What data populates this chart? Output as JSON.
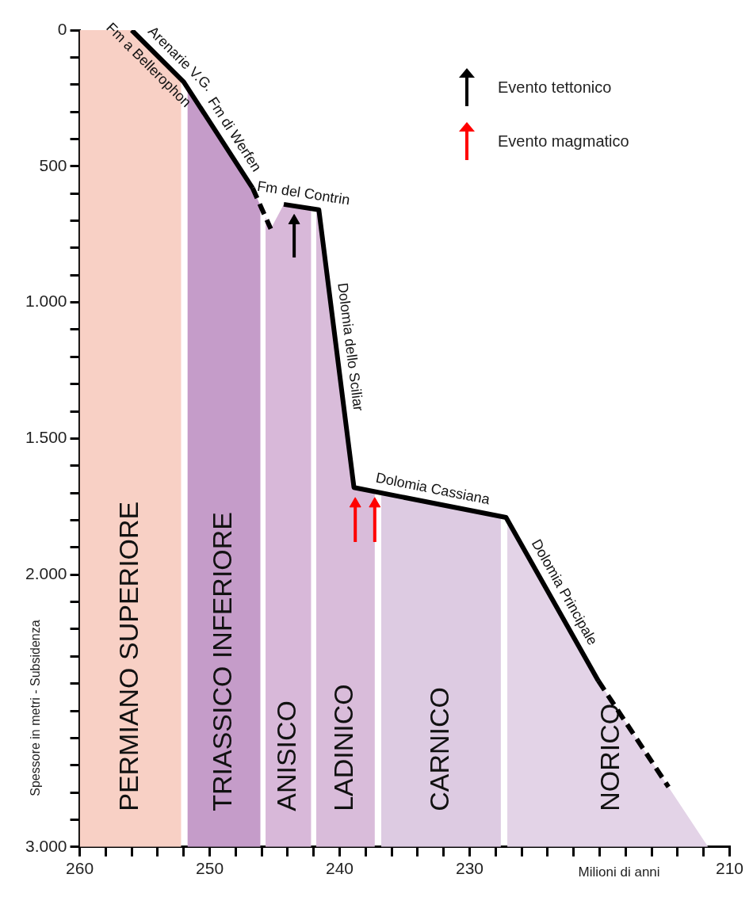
{
  "chart_data": {
    "type": "line",
    "xlabel": "Milioni di anni",
    "ylabel": "Spessore in metri - Subsidenza",
    "xlim": [
      260,
      210
    ],
    "xticks": [
      260,
      {
        "value": 258,
        "label": null
      },
      {
        "value": 256,
        "label": null
      },
      {
        "value": 254,
        "label": null
      },
      {
        "value": 252,
        "label": null
      },
      250,
      {
        "value": 248,
        "label": null
      },
      {
        "value": 246,
        "label": null
      },
      {
        "value": 244,
        "label": null
      },
      {
        "value": 242,
        "label": null
      },
      240,
      {
        "value": 238,
        "label": null
      },
      {
        "value": 236,
        "label": null
      },
      {
        "value": 234,
        "label": null
      },
      {
        "value": 232,
        "label": null
      },
      230,
      {
        "value": 228,
        "label": null
      },
      {
        "value": 226,
        "label": null
      },
      {
        "value": 224,
        "label": null
      },
      {
        "value": 222,
        "label": null
      },
      {
        "value": 220,
        "label": null
      },
      {
        "value": 218,
        "label": null
      },
      {
        "value": 216,
        "label": null
      },
      {
        "value": 214,
        "label": null
      },
      {
        "value": 212,
        "label": null
      },
      210
    ],
    "ylim": [
      3000,
      0
    ],
    "yticks": [
      0,
      {
        "value": 100,
        "label": null
      },
      {
        "value": 200,
        "label": null
      },
      {
        "value": 300,
        "label": null
      },
      {
        "value": 400,
        "label": null
      },
      500,
      {
        "value": 600,
        "label": null
      },
      {
        "value": 700,
        "label": null
      },
      {
        "value": 800,
        "label": null
      },
      {
        "value": 900,
        "label": null
      },
      {
        "value": 1000,
        "label": "1.000"
      },
      {
        "value": 1100,
        "label": null
      },
      {
        "value": 1200,
        "label": null
      },
      {
        "value": 1300,
        "label": null
      },
      {
        "value": 1400,
        "label": null
      },
      {
        "value": 1500,
        "label": "1.500"
      },
      {
        "value": 1600,
        "label": null
      },
      {
        "value": 1700,
        "label": null
      },
      {
        "value": 1800,
        "label": null
      },
      {
        "value": 1900,
        "label": null
      },
      {
        "value": 2000,
        "label": "2.000"
      },
      {
        "value": 2100,
        "label": null
      },
      {
        "value": 2200,
        "label": null
      },
      {
        "value": 2300,
        "label": null
      },
      {
        "value": 2400,
        "label": null
      },
      {
        "value": 2500,
        "label": null
      },
      {
        "value": 2600,
        "label": null
      },
      {
        "value": 2700,
        "label": null
      },
      {
        "value": 2800,
        "label": null
      },
      {
        "value": 2900,
        "label": null
      },
      {
        "value": 3000,
        "label": "3.000"
      }
    ],
    "legend": "top right",
    "series": [
      {
        "color": "#000000",
        "line_style": "solid",
        "x": [
          256,
          252,
          246.7
        ],
        "values": [
          0,
          190,
          580
        ]
      },
      {
        "color": "#000000",
        "line_style": "dashed",
        "x": [
          246.7,
          245.3
        ],
        "values": [
          580,
          730
        ]
      },
      {
        "color": "#000000",
        "line_style": "solid",
        "x": [
          244.3,
          241.6,
          238.9,
          227.2,
          220.1
        ],
        "values": [
          640,
          660,
          1680,
          1790,
          2390
        ]
      },
      {
        "color": "#000000",
        "line_style": "dashed",
        "x": [
          220.1,
          214.7
        ],
        "values": [
          2390,
          2780
        ]
      },
      {
        "type": "scatter",
        "name": "Evento tettonico",
        "color": "#000000",
        "marker": "triangle",
        "x": [
          243.5
        ],
        "values": [
          700
        ],
        "errors": [
          [
            700,
            835
          ]
        ]
      },
      {
        "type": "scatter",
        "name": "Evento magmatico",
        "color": "#ff0000",
        "marker": "triangle",
        "x": [
          238.8,
          237.3
        ],
        "values": [
          1740,
          1740
        ],
        "errors": [
          [
            1740,
            1880
          ],
          [
            1740,
            1880
          ]
        ]
      }
    ],
    "bands": [
      {
        "axis": "x",
        "from": 260,
        "to": 252.2,
        "label": "PERMIANO SUPERIORE",
        "color": "#f8d0c5"
      },
      {
        "axis": "x",
        "from": 251.7,
        "to": 246.1,
        "label": "TRIASSICO INFERIORE",
        "color": "#c59cc9"
      },
      {
        "axis": "x",
        "from": 245.7,
        "to": 242.2,
        "label": "ANISICO",
        "color": "#d8b8d9"
      },
      {
        "axis": "x",
        "from": 241.8,
        "to": 237.3,
        "label": "LADINICO",
        "color": "#d9bcda"
      },
      {
        "axis": "x",
        "from": 236.8,
        "to": 227.6,
        "label": "CARNICO",
        "color": "#ddcbe2"
      },
      {
        "axis": "x",
        "from": 227.1,
        "to": 211,
        "label": "NORICO",
        "color": "#e3d3e7"
      }
    ],
    "annotations": [
      {
        "text": "Arenarie V.G.",
        "x": 253,
        "y": 142.5
      },
      {
        "text": "Fm a Bellerophon",
        "x": 254,
        "y": 95
      },
      {
        "text": "Fm di Werfen",
        "x": 249,
        "y": 411
      },
      {
        "text": "Fm del Contrin",
        "x": 242.95,
        "y": 650
      },
      {
        "text": "Dolomia dello Sciliar",
        "x": 240.25,
        "y": 1170
      },
      {
        "text": "Dolomia Cassiana",
        "x": 233.05,
        "y": 1735
      },
      {
        "text": "Dolomia Principale",
        "x": 223.65,
        "y": 2090
      }
    ]
  }
}
